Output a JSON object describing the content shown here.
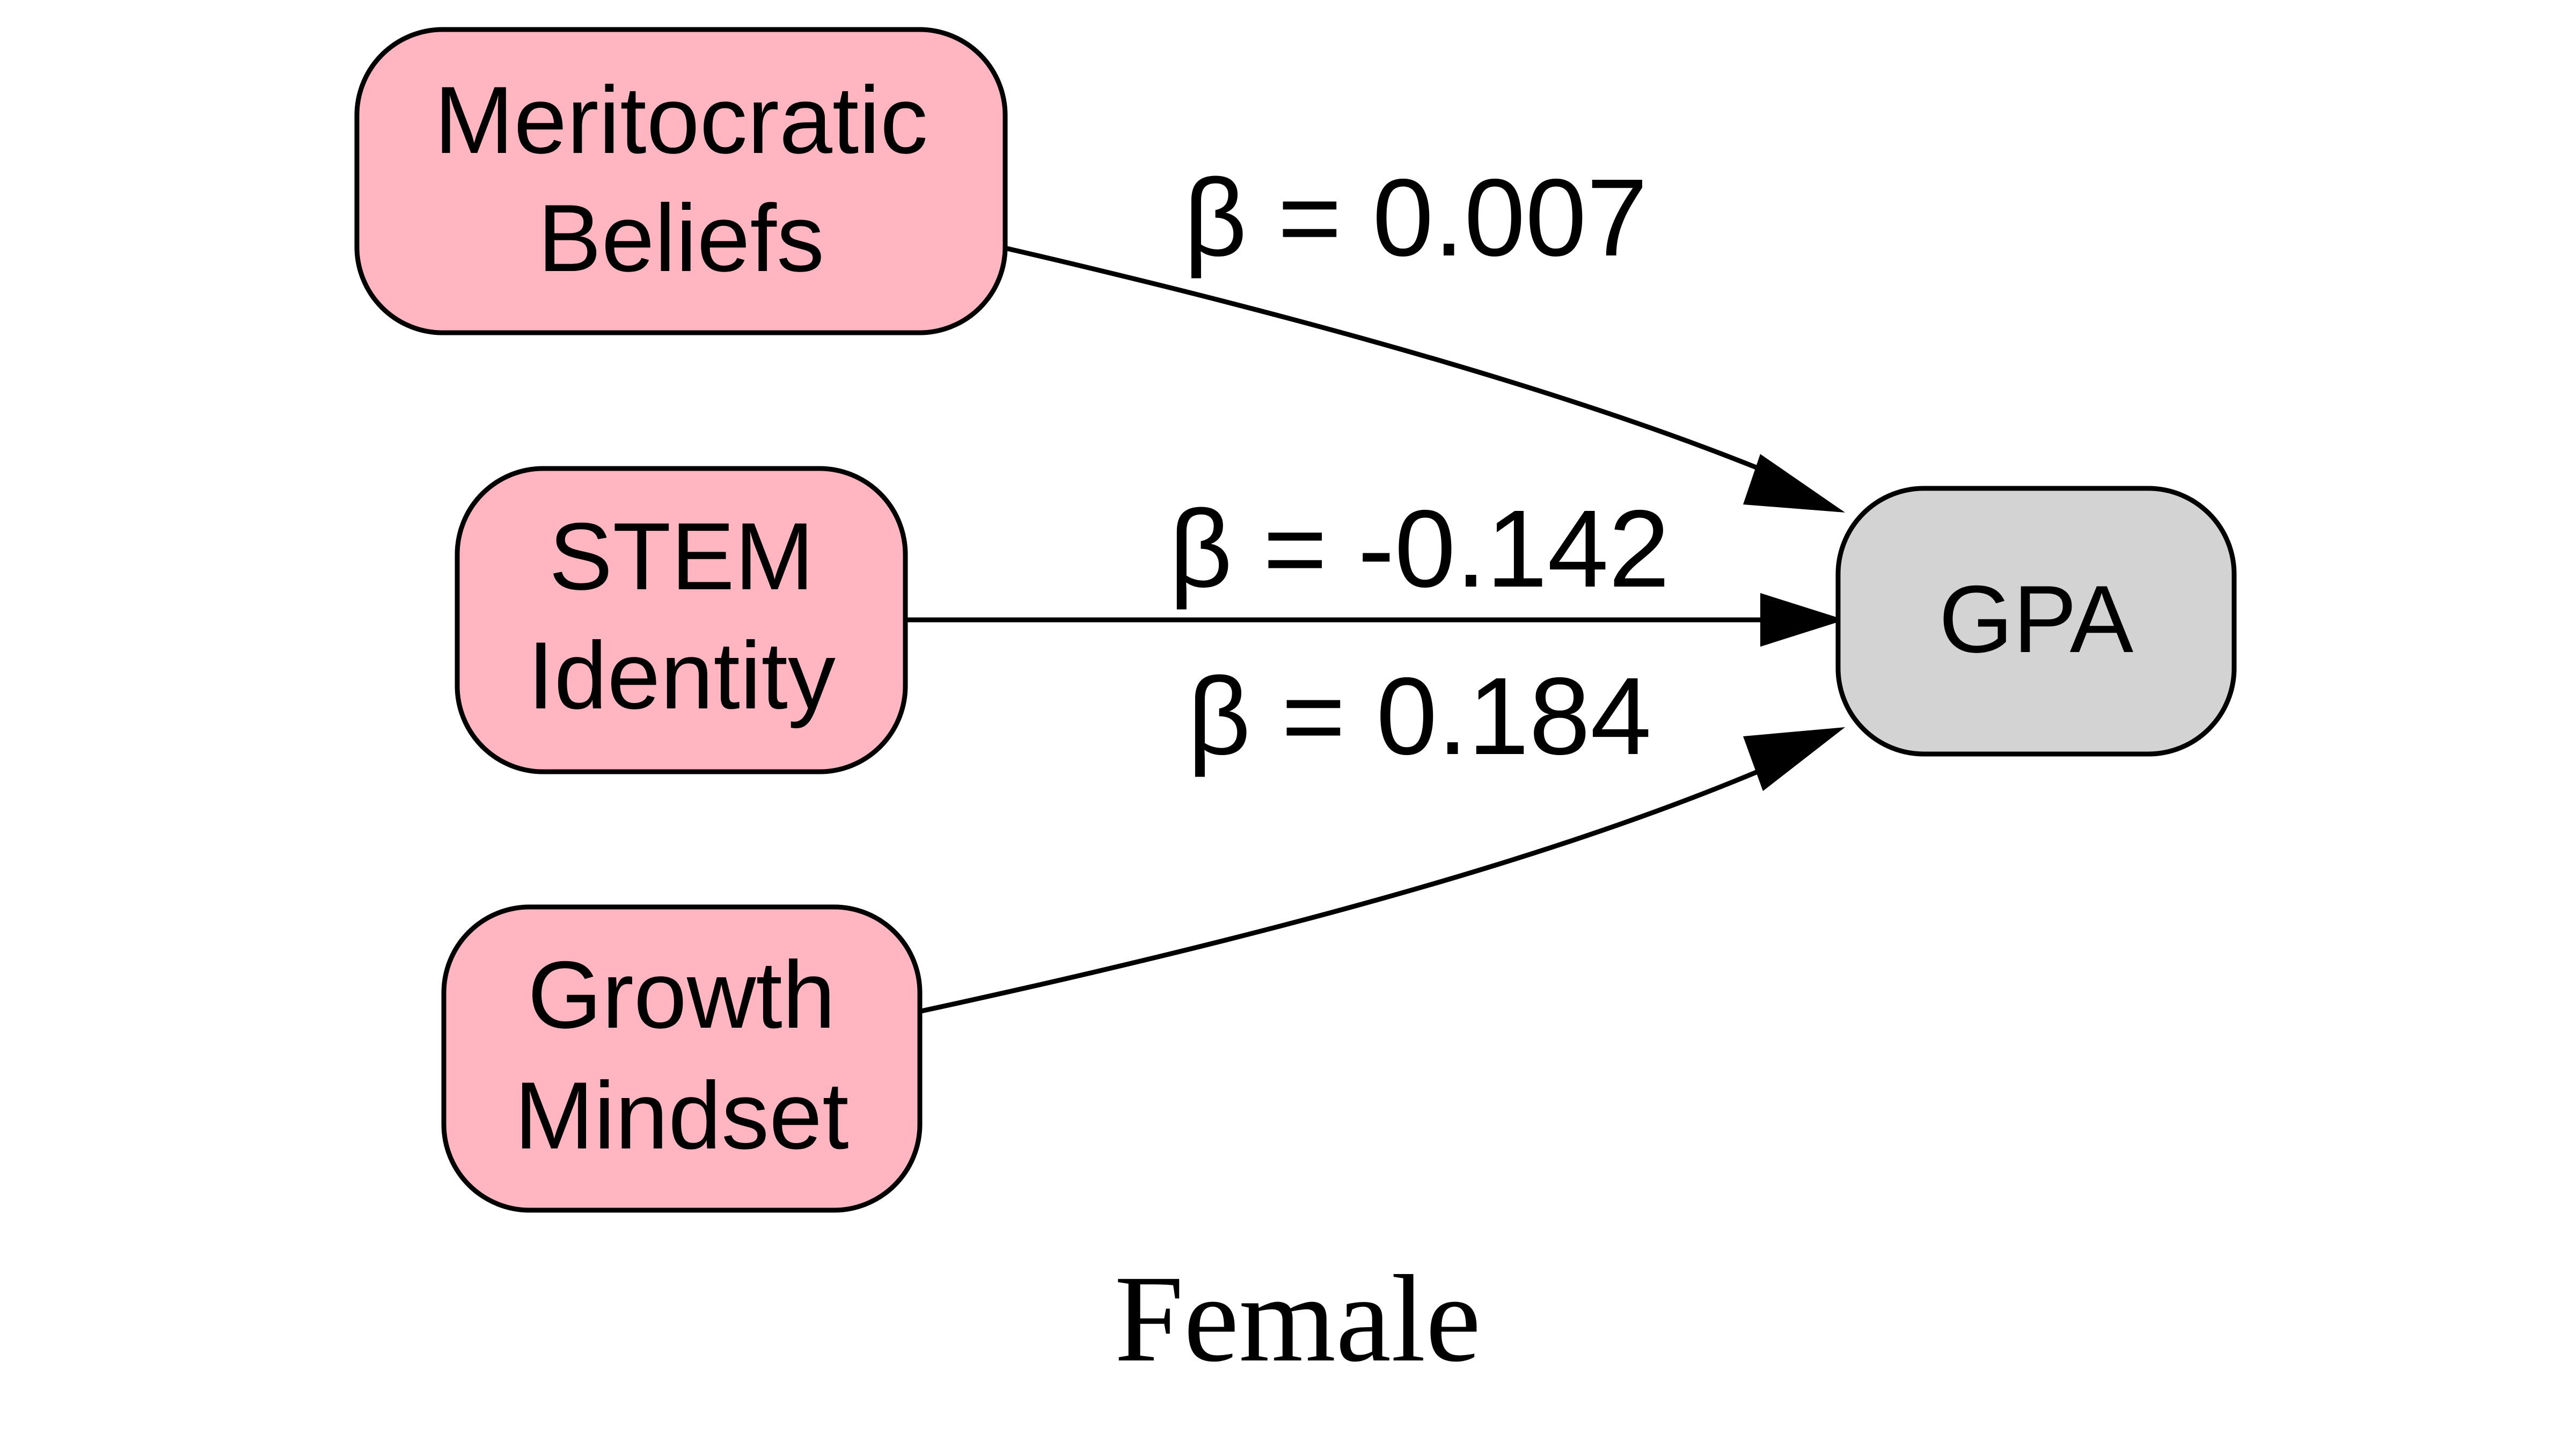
{
  "diagram": {
    "caption": "Female",
    "colors": {
      "predictor_fill": "#ffb6c1",
      "outcome_fill": "#d3d3d3",
      "stroke": "#000000"
    },
    "nodes": {
      "meritocratic": {
        "line1": "Meritocratic",
        "line2": "Beliefs"
      },
      "stem": {
        "line1": "STEM",
        "line2": "Identity"
      },
      "growth": {
        "line1": "Growth",
        "line2": "Mindset"
      },
      "gpa": {
        "label": "GPA"
      }
    },
    "edges": {
      "meritocratic_gpa": "β = 0.007",
      "stem_gpa": "β = -0.142",
      "growth_gpa": "β = 0.184"
    }
  }
}
